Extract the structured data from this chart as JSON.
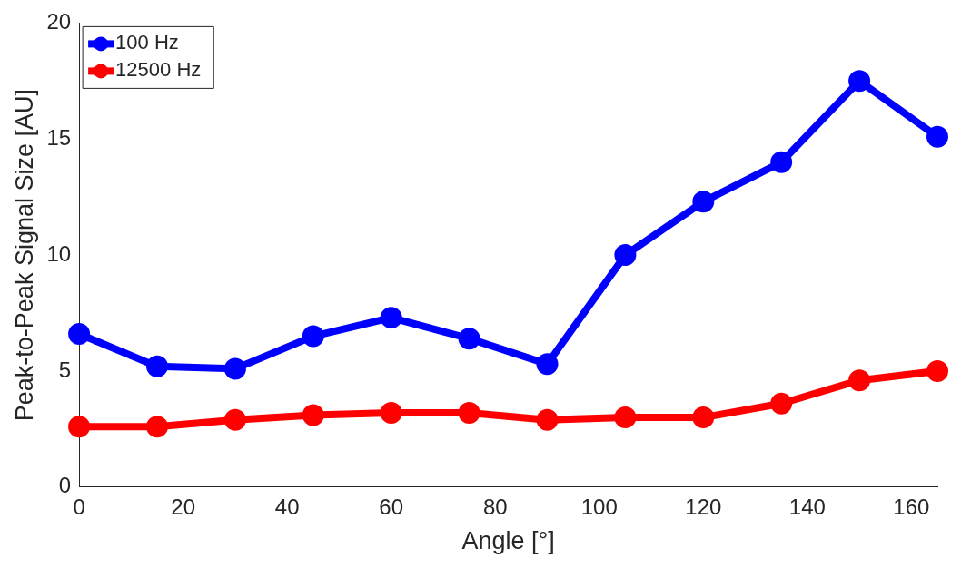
{
  "chart_data": {
    "type": "line",
    "xlabel": "Angle [°]",
    "ylabel": "Peak-to-Peak Signal Size [AU]",
    "x": [
      0,
      15,
      30,
      45,
      60,
      75,
      90,
      105,
      120,
      135,
      150,
      165
    ],
    "series": [
      {
        "name": "100 Hz",
        "color": "#0000ff",
        "values": [
          6.6,
          5.2,
          5.1,
          6.5,
          7.3,
          6.4,
          5.3,
          10.0,
          12.3,
          14.0,
          17.5,
          15.1
        ]
      },
      {
        "name": "12500 Hz",
        "color": "#ff0000",
        "values": [
          2.6,
          2.6,
          2.9,
          3.1,
          3.2,
          3.2,
          2.9,
          3.0,
          3.0,
          3.6,
          4.6,
          5.0
        ]
      }
    ],
    "xlim": [
      0,
      165
    ],
    "xticks": [
      0,
      20,
      40,
      60,
      80,
      100,
      120,
      140,
      160
    ],
    "ylim": [
      0,
      20
    ],
    "yticks": [
      0,
      5,
      10,
      15,
      20
    ],
    "grid": false,
    "legend": "top left",
    "marker": "circle",
    "line_style": "solid"
  }
}
